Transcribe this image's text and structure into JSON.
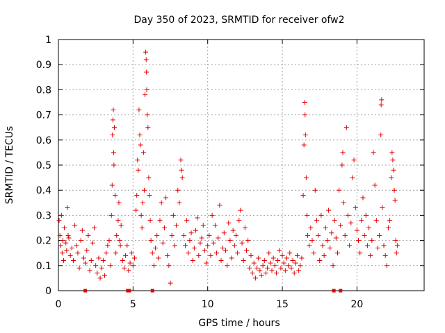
{
  "chart_data": {
    "type": "scatter",
    "title": "Day 350 of 2023, SRMTID for receiver ofw2",
    "xlabel": "GPS time / hours",
    "ylabel": "SRMTID / TECUs",
    "xlim": [
      0,
      24.5
    ],
    "ylim": [
      0,
      1
    ],
    "xticks": [
      0,
      5,
      10,
      15,
      20
    ],
    "yticks": [
      0,
      0.1,
      0.2,
      0.3,
      0.4,
      0.5,
      0.6,
      0.7,
      0.8,
      0.9,
      1
    ],
    "grid": true,
    "marker": "plus",
    "color": "#e00000",
    "series": [
      {
        "name": "ofw2",
        "points": [
          [
            0.05,
            0.28
          ],
          [
            0.1,
            0.22
          ],
          [
            0.15,
            0.18
          ],
          [
            0.2,
            0.3
          ],
          [
            0.25,
            0.15
          ],
          [
            0.3,
            0.2
          ],
          [
            0.35,
            0.12
          ],
          [
            0.4,
            0.25
          ],
          [
            0.5,
            0.19
          ],
          [
            0.55,
            0.16
          ],
          [
            0.6,
            0.33
          ],
          [
            0.65,
            0.22
          ],
          [
            0.7,
            0.21
          ],
          [
            0.8,
            0.14
          ],
          [
            0.9,
            0.17
          ],
          [
            1.0,
            0.12
          ],
          [
            1.1,
            0.26
          ],
          [
            1.2,
            0.18
          ],
          [
            1.3,
            0.15
          ],
          [
            1.4,
            0.09
          ],
          [
            1.5,
            0.2
          ],
          [
            1.6,
            0.24
          ],
          [
            1.7,
            0.13
          ],
          [
            1.8,
            0.11
          ],
          [
            1.9,
            0.16
          ],
          [
            2.0,
            0.22
          ],
          [
            2.1,
            0.08
          ],
          [
            2.2,
            0.12
          ],
          [
            2.3,
            0.19
          ],
          [
            2.4,
            0.25
          ],
          [
            2.5,
            0.1
          ],
          [
            2.6,
            0.07
          ],
          [
            2.7,
            0.13
          ],
          [
            2.8,
            0.05
          ],
          [
            2.9,
            0.09
          ],
          [
            3.0,
            0.12
          ],
          [
            3.1,
            0.06
          ],
          [
            3.2,
            0.15
          ],
          [
            3.3,
            0.18
          ],
          [
            3.4,
            0.2
          ],
          [
            3.5,
            0.1
          ],
          [
            3.55,
            0.3
          ],
          [
            3.6,
            0.42
          ],
          [
            3.62,
            0.62
          ],
          [
            3.65,
            0.68
          ],
          [
            3.68,
            0.72
          ],
          [
            3.7,
            0.55
          ],
          [
            3.72,
            0.5
          ],
          [
            3.75,
            0.65
          ],
          [
            3.8,
            0.38
          ],
          [
            3.85,
            0.15
          ],
          [
            3.9,
            0.22
          ],
          [
            4.0,
            0.28
          ],
          [
            4.05,
            0.35
          ],
          [
            4.1,
            0.2
          ],
          [
            4.15,
            0.18
          ],
          [
            4.2,
            0.26
          ],
          [
            4.3,
            0.12
          ],
          [
            4.4,
            0.09
          ],
          [
            4.5,
            0.14
          ],
          [
            4.6,
            0.18
          ],
          [
            4.7,
            0.08
          ],
          [
            4.8,
            0.11
          ],
          [
            4.9,
            0.15
          ],
          [
            5.0,
            0.1
          ],
          [
            5.1,
            0.13
          ],
          [
            5.2,
            0.32
          ],
          [
            5.25,
            0.38
          ],
          [
            5.3,
            0.52
          ],
          [
            5.35,
            0.48
          ],
          [
            5.4,
            0.72
          ],
          [
            5.45,
            0.62
          ],
          [
            5.5,
            0.58
          ],
          [
            5.55,
            0.3
          ],
          [
            5.6,
            0.25
          ],
          [
            5.65,
            0.35
          ],
          [
            5.7,
            0.55
          ],
          [
            5.75,
            0.4
          ],
          [
            5.8,
            0.78
          ],
          [
            5.85,
            0.95
          ],
          [
            5.88,
            0.92
          ],
          [
            5.9,
            0.87
          ],
          [
            5.92,
            0.8
          ],
          [
            5.95,
            0.7
          ],
          [
            6.0,
            0.65
          ],
          [
            6.05,
            0.45
          ],
          [
            6.1,
            0.38
          ],
          [
            6.15,
            0.28
          ],
          [
            6.2,
            0.2
          ],
          [
            6.3,
            0.15
          ],
          [
            6.4,
            0.1
          ],
          [
            6.5,
            0.17
          ],
          [
            6.6,
            0.22
          ],
          [
            6.7,
            0.13
          ],
          [
            6.8,
            0.28
          ],
          [
            6.9,
            0.35
          ],
          [
            7.0,
            0.19
          ],
          [
            7.1,
            0.25
          ],
          [
            7.2,
            0.37
          ],
          [
            7.3,
            0.14
          ],
          [
            7.4,
            0.1
          ],
          [
            7.5,
            0.03
          ],
          [
            7.6,
            0.22
          ],
          [
            7.7,
            0.3
          ],
          [
            7.8,
            0.18
          ],
          [
            7.9,
            0.26
          ],
          [
            8.0,
            0.4
          ],
          [
            8.1,
            0.35
          ],
          [
            8.2,
            0.52
          ],
          [
            8.25,
            0.48
          ],
          [
            8.3,
            0.45
          ],
          [
            8.4,
            0.22
          ],
          [
            8.5,
            0.18
          ],
          [
            8.6,
            0.28
          ],
          [
            8.7,
            0.15
          ],
          [
            8.8,
            0.2
          ],
          [
            8.9,
            0.23
          ],
          [
            9.0,
            0.12
          ],
          [
            9.1,
            0.17
          ],
          [
            9.2,
            0.24
          ],
          [
            9.3,
            0.29
          ],
          [
            9.4,
            0.14
          ],
          [
            9.5,
            0.19
          ],
          [
            9.6,
            0.21
          ],
          [
            9.7,
            0.26
          ],
          [
            9.8,
            0.16
          ],
          [
            9.9,
            0.11
          ],
          [
            10.0,
            0.18
          ],
          [
            10.1,
            0.22
          ],
          [
            10.2,
            0.14
          ],
          [
            10.3,
            0.3
          ],
          [
            10.4,
            0.19
          ],
          [
            10.5,
            0.26
          ],
          [
            10.6,
            0.15
          ],
          [
            10.7,
            0.21
          ],
          [
            10.8,
            0.34
          ],
          [
            10.9,
            0.12
          ],
          [
            11.0,
            0.17
          ],
          [
            11.1,
            0.23
          ],
          [
            11.2,
            0.16
          ],
          [
            11.3,
            0.1
          ],
          [
            11.4,
            0.27
          ],
          [
            11.5,
            0.2
          ],
          [
            11.6,
            0.13
          ],
          [
            11.7,
            0.24
          ],
          [
            11.8,
            0.18
          ],
          [
            11.9,
            0.22
          ],
          [
            12.0,
            0.15
          ],
          [
            12.1,
            0.28
          ],
          [
            12.2,
            0.32
          ],
          [
            12.3,
            0.19
          ],
          [
            12.4,
            0.12
          ],
          [
            12.5,
            0.25
          ],
          [
            12.6,
            0.16
          ],
          [
            12.7,
            0.2
          ],
          [
            12.8,
            0.09
          ],
          [
            12.9,
            0.14
          ],
          [
            13.0,
            0.07
          ],
          [
            13.1,
            0.11
          ],
          [
            13.2,
            0.05
          ],
          [
            13.3,
            0.09
          ],
          [
            13.4,
            0.13
          ],
          [
            13.5,
            0.08
          ],
          [
            13.6,
            0.06
          ],
          [
            13.7,
            0.1
          ],
          [
            13.8,
            0.12
          ],
          [
            13.9,
            0.07
          ],
          [
            14.0,
            0.09
          ],
          [
            14.1,
            0.15
          ],
          [
            14.2,
            0.11
          ],
          [
            14.3,
            0.08
          ],
          [
            14.4,
            0.13
          ],
          [
            14.5,
            0.1
          ],
          [
            14.6,
            0.07
          ],
          [
            14.7,
            0.12
          ],
          [
            14.8,
            0.16
          ],
          [
            14.9,
            0.09
          ],
          [
            15.0,
            0.14
          ],
          [
            15.1,
            0.11
          ],
          [
            15.2,
            0.08
          ],
          [
            15.3,
            0.13
          ],
          [
            15.4,
            0.1
          ],
          [
            15.5,
            0.15
          ],
          [
            15.6,
            0.09
          ],
          [
            15.7,
            0.12
          ],
          [
            15.8,
            0.07
          ],
          [
            15.9,
            0.11
          ],
          [
            16.0,
            0.14
          ],
          [
            16.1,
            0.08
          ],
          [
            16.2,
            0.1
          ],
          [
            16.3,
            0.13
          ],
          [
            16.4,
            0.38
          ],
          [
            16.45,
            0.58
          ],
          [
            16.5,
            0.75
          ],
          [
            16.52,
            0.7
          ],
          [
            16.55,
            0.62
          ],
          [
            16.6,
            0.45
          ],
          [
            16.65,
            0.3
          ],
          [
            16.7,
            0.22
          ],
          [
            16.8,
            0.18
          ],
          [
            16.9,
            0.25
          ],
          [
            17.0,
            0.2
          ],
          [
            17.1,
            0.15
          ],
          [
            17.2,
            0.4
          ],
          [
            17.3,
            0.28
          ],
          [
            17.4,
            0.22
          ],
          [
            17.5,
            0.12
          ],
          [
            17.6,
            0.3
          ],
          [
            17.7,
            0.18
          ],
          [
            17.8,
            0.14
          ],
          [
            17.9,
            0.25
          ],
          [
            18.0,
            0.2
          ],
          [
            18.1,
            0.32
          ],
          [
            18.2,
            0.17
          ],
          [
            18.3,
            0.23
          ],
          [
            18.4,
            0.1
          ],
          [
            18.5,
            0.28
          ],
          [
            18.6,
            0.21
          ],
          [
            18.7,
            0.15
          ],
          [
            18.8,
            0.4
          ],
          [
            18.9,
            0.26
          ],
          [
            19.0,
            0.5
          ],
          [
            19.05,
            0.55
          ],
          [
            19.1,
            0.35
          ],
          [
            19.2,
            0.22
          ],
          [
            19.3,
            0.65
          ],
          [
            19.4,
            0.3
          ],
          [
            19.5,
            0.18
          ],
          [
            19.6,
            0.27
          ],
          [
            19.7,
            0.45
          ],
          [
            19.8,
            0.52
          ],
          [
            19.9,
            0.33
          ],
          [
            20.0,
            0.24
          ],
          [
            20.1,
            0.2
          ],
          [
            20.2,
            0.15
          ],
          [
            20.3,
            0.28
          ],
          [
            20.4,
            0.37
          ],
          [
            20.5,
            0.22
          ],
          [
            20.6,
            0.3
          ],
          [
            20.7,
            0.18
          ],
          [
            20.8,
            0.25
          ],
          [
            20.9,
            0.14
          ],
          [
            21.0,
            0.2
          ],
          [
            21.1,
            0.55
          ],
          [
            21.2,
            0.42
          ],
          [
            21.3,
            0.28
          ],
          [
            21.4,
            0.17
          ],
          [
            21.5,
            0.22
          ],
          [
            21.6,
            0.62
          ],
          [
            21.62,
            0.74
          ],
          [
            21.65,
            0.76
          ],
          [
            21.7,
            0.33
          ],
          [
            21.8,
            0.18
          ],
          [
            21.9,
            0.14
          ],
          [
            22.0,
            0.1
          ],
          [
            22.1,
            0.25
          ],
          [
            22.2,
            0.28
          ],
          [
            22.3,
            0.45
          ],
          [
            22.35,
            0.55
          ],
          [
            22.4,
            0.52
          ],
          [
            22.45,
            0.48
          ],
          [
            22.5,
            0.4
          ],
          [
            22.55,
            0.36
          ],
          [
            22.6,
            0.2
          ],
          [
            22.65,
            0.15
          ],
          [
            22.7,
            0.18
          ]
        ]
      }
    ],
    "zero_markers": [
      1.8,
      4.65,
      4.75,
      6.3,
      18.45,
      18.9
    ]
  }
}
